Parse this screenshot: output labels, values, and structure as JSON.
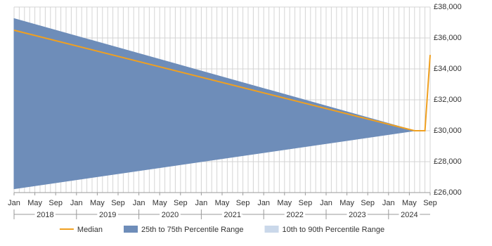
{
  "chart_data": {
    "type": "range-line",
    "x": [
      "2018-01",
      "2024-06",
      "2024-08",
      "2024-09"
    ],
    "series": [
      {
        "name": "Median",
        "color": "#f0a020",
        "values": [
          36500,
          30000,
          30000,
          34900
        ]
      },
      {
        "name": "25th to 75th Percentile Range",
        "color": "#6e8db9",
        "low": [
          26250,
          30000,
          30000,
          34900
        ],
        "high": [
          37250,
          30000,
          30000,
          34900
        ]
      },
      {
        "name": "10th to 90th Percentile Range",
        "color": "#cad8ea",
        "low": [
          26250,
          30000,
          30000,
          34900
        ],
        "high": [
          37250,
          30000,
          30000,
          34900
        ]
      }
    ],
    "xlim": [
      "2018-01",
      "2024-09"
    ],
    "xticks": [
      {
        "value": "2018-01",
        "label": "Jan"
      },
      {
        "value": "2018-05",
        "label": "May"
      },
      {
        "value": "2018-09",
        "label": "Sep"
      },
      {
        "value": "2019-01",
        "label": "Jan"
      },
      {
        "value": "2019-05",
        "label": "May"
      },
      {
        "value": "2019-09",
        "label": "Sep"
      },
      {
        "value": "2020-01",
        "label": "Jan"
      },
      {
        "value": "2020-05",
        "label": "May"
      },
      {
        "value": "2020-09",
        "label": "Sep"
      },
      {
        "value": "2021-01",
        "label": "Jan"
      },
      {
        "value": "2021-05",
        "label": "May"
      },
      {
        "value": "2021-09",
        "label": "Sep"
      },
      {
        "value": "2022-01",
        "label": "Jan"
      },
      {
        "value": "2022-05",
        "label": "May"
      },
      {
        "value": "2022-09",
        "label": "Sep"
      },
      {
        "value": "2023-01",
        "label": "Jan"
      },
      {
        "value": "2023-05",
        "label": "May"
      },
      {
        "value": "2023-09",
        "label": "Sep"
      },
      {
        "value": "2024-01",
        "label": "Jan"
      },
      {
        "value": "2024-05",
        "label": "May"
      },
      {
        "value": "2024-09",
        "label": "Sep"
      }
    ],
    "years": [
      2018,
      2019,
      2020,
      2021,
      2022,
      2023,
      2024
    ],
    "ylim": [
      26000,
      38000
    ],
    "yticks": [
      {
        "value": 26000,
        "label": "£26,000"
      },
      {
        "value": 28000,
        "label": "£28,000"
      },
      {
        "value": 30000,
        "label": "£30,000"
      },
      {
        "value": 32000,
        "label": "£32,000"
      },
      {
        "value": 34000,
        "label": "£34,000"
      },
      {
        "value": 36000,
        "label": "£36,000"
      },
      {
        "value": 38000,
        "label": "£38,000"
      }
    ],
    "grid": true
  }
}
